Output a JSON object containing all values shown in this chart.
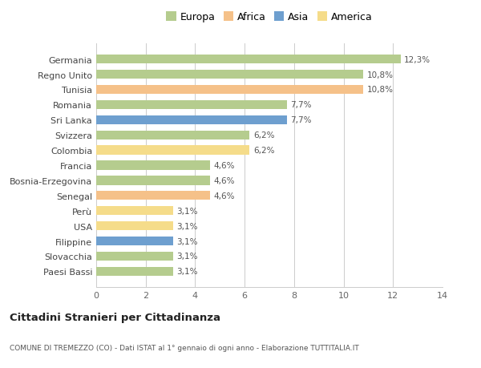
{
  "countries": [
    "Germania",
    "Regno Unito",
    "Tunisia",
    "Romania",
    "Sri Lanka",
    "Svizzera",
    "Colombia",
    "Francia",
    "Bosnia-Erzegovina",
    "Senegal",
    "Perù",
    "USA",
    "Filippine",
    "Slovacchia",
    "Paesi Bassi"
  ],
  "values": [
    12.3,
    10.8,
    10.8,
    7.7,
    7.7,
    6.2,
    6.2,
    4.6,
    4.6,
    4.6,
    3.1,
    3.1,
    3.1,
    3.1,
    3.1
  ],
  "labels": [
    "12,3%",
    "10,8%",
    "10,8%",
    "7,7%",
    "7,7%",
    "6,2%",
    "6,2%",
    "4,6%",
    "4,6%",
    "4,6%",
    "3,1%",
    "3,1%",
    "3,1%",
    "3,1%",
    "3,1%"
  ],
  "colors": [
    "#b5cc8e",
    "#b5cc8e",
    "#f5c189",
    "#b5cc8e",
    "#6e9fcf",
    "#b5cc8e",
    "#f5dc8a",
    "#b5cc8e",
    "#b5cc8e",
    "#f5c189",
    "#f5dc8a",
    "#f5dc8a",
    "#6e9fcf",
    "#b5cc8e",
    "#b5cc8e"
  ],
  "legend_labels": [
    "Europa",
    "Africa",
    "Asia",
    "America"
  ],
  "legend_colors": [
    "#b5cc8e",
    "#f5c189",
    "#6e9fcf",
    "#f5dc8a"
  ],
  "title": "Cittadini Stranieri per Cittadinanza",
  "subtitle": "COMUNE DI TREMEZZO (CO) - Dati ISTAT al 1° gennaio di ogni anno - Elaborazione TUTTITALIA.IT",
  "xlim": [
    0,
    14
  ],
  "xticks": [
    0,
    2,
    4,
    6,
    8,
    10,
    12,
    14
  ],
  "bg_color": "#ffffff",
  "grid_color": "#cccccc",
  "bar_height": 0.6
}
